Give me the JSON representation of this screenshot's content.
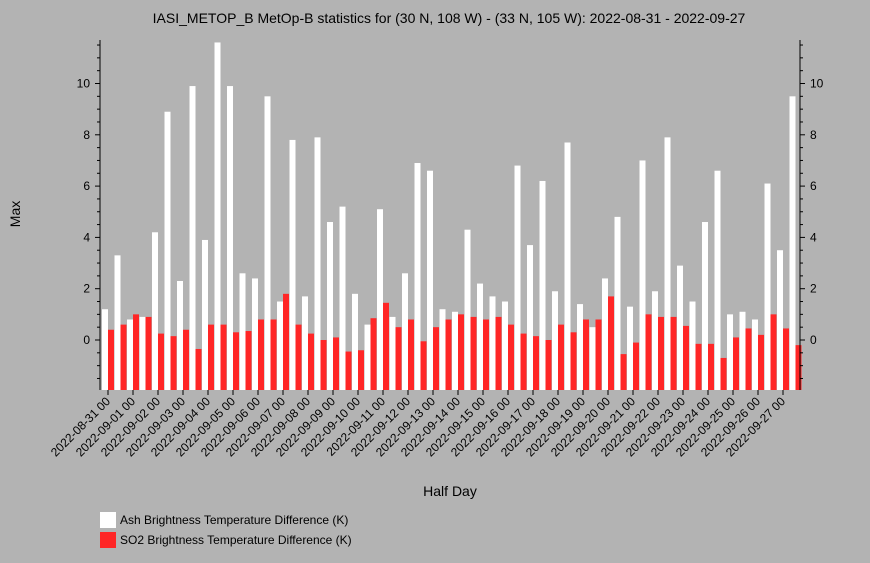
{
  "chart_data": {
    "type": "bar",
    "title": "IASI_METOP_B MetOp-B statistics for (30 N, 108 W) - (33 N, 105 W): 2022-08-31 - 2022-09-27",
    "xlabel": "Half Day",
    "ylabel": "Max",
    "ylim": [
      -2,
      11.6
    ],
    "yticks": [
      0,
      2,
      4,
      6,
      8,
      10
    ],
    "grid": false,
    "legend_position": "bottom-left",
    "categories": [
      "2022-08-31 00",
      "2022-08-31 12",
      "2022-09-01 00",
      "2022-09-01 12",
      "2022-09-02 00",
      "2022-09-02 12",
      "2022-09-03 00",
      "2022-09-03 12",
      "2022-09-04 00",
      "2022-09-04 12",
      "2022-09-05 00",
      "2022-09-05 12",
      "2022-09-06 00",
      "2022-09-06 12",
      "2022-09-07 00",
      "2022-09-07 12",
      "2022-09-08 00",
      "2022-09-08 12",
      "2022-09-09 00",
      "2022-09-09 12",
      "2022-09-10 00",
      "2022-09-10 12",
      "2022-09-11 00",
      "2022-09-11 12",
      "2022-09-12 00",
      "2022-09-12 12",
      "2022-09-13 00",
      "2022-09-13 12",
      "2022-09-14 00",
      "2022-09-14 12",
      "2022-09-15 00",
      "2022-09-15 12",
      "2022-09-16 00",
      "2022-09-16 12",
      "2022-09-17 00",
      "2022-09-17 12",
      "2022-09-18 00",
      "2022-09-18 12",
      "2022-09-19 00",
      "2022-09-19 12",
      "2022-09-20 00",
      "2022-09-20 12",
      "2022-09-21 00",
      "2022-09-21 12",
      "2022-09-22 00",
      "2022-09-22 12",
      "2022-09-23 00",
      "2022-09-23 12",
      "2022-09-24 00",
      "2022-09-24 12",
      "2022-09-25 00",
      "2022-09-25 12",
      "2022-09-26 00",
      "2022-09-26 12",
      "2022-09-27 00",
      "2022-09-27 12"
    ],
    "xtick_labels": [
      "2022-08-31 00",
      "2022-09-01 00",
      "2022-09-02 00",
      "2022-09-03 00",
      "2022-09-04 00",
      "2022-09-05 00",
      "2022-09-06 00",
      "2022-09-07 00",
      "2022-09-08 00",
      "2022-09-09 00",
      "2022-09-10 00",
      "2022-09-11 00",
      "2022-09-12 00",
      "2022-09-13 00",
      "2022-09-14 00",
      "2022-09-15 00",
      "2022-09-16 00",
      "2022-09-17 00",
      "2022-09-18 00",
      "2022-09-19 00",
      "2022-09-20 00",
      "2022-09-21 00",
      "2022-09-22 00",
      "2022-09-23 00",
      "2022-09-24 00",
      "2022-09-25 00",
      "2022-09-26 00",
      "2022-09-27 00"
    ],
    "series": [
      {
        "name": "Ash Brightness Temperature Difference (K)",
        "color": "#ffffff",
        "values": [
          1.2,
          3.3,
          0.8,
          0.9,
          4.2,
          8.9,
          2.3,
          9.9,
          3.9,
          11.6,
          9.9,
          2.6,
          2.4,
          9.5,
          1.5,
          7.8,
          1.7,
          7.9,
          4.6,
          5.2,
          1.8,
          0.6,
          5.1,
          0.9,
          2.6,
          6.9,
          6.6,
          1.2,
          1.1,
          4.3,
          2.2,
          1.7,
          1.5,
          6.8,
          3.7,
          6.2,
          1.9,
          7.7,
          1.4,
          0.5,
          2.4,
          4.8,
          1.3,
          7.0,
          1.9,
          7.9,
          2.9,
          1.5,
          4.6,
          6.6,
          1.0,
          1.1,
          0.8,
          6.1,
          3.5,
          9.5
        ]
      },
      {
        "name": "SO2 Brightness Temperature Difference (K)",
        "color": "#ff2626",
        "values": [
          0.4,
          0.6,
          1.0,
          0.9,
          0.25,
          0.15,
          0.4,
          -0.35,
          0.6,
          0.6,
          0.3,
          0.35,
          0.8,
          0.8,
          1.8,
          0.6,
          0.25,
          0.0,
          0.1,
          -0.45,
          -0.4,
          0.85,
          1.45,
          0.5,
          0.8,
          -0.05,
          0.5,
          0.8,
          1.0,
          0.9,
          0.8,
          0.9,
          0.6,
          0.25,
          0.15,
          0.0,
          0.6,
          0.3,
          0.8,
          0.8,
          1.7,
          -0.55,
          -0.1,
          1.0,
          0.9,
          0.9,
          0.55,
          -0.15,
          -0.15,
          -0.7,
          0.1,
          0.45,
          0.2,
          1.0,
          0.45,
          -0.2
        ]
      }
    ]
  }
}
